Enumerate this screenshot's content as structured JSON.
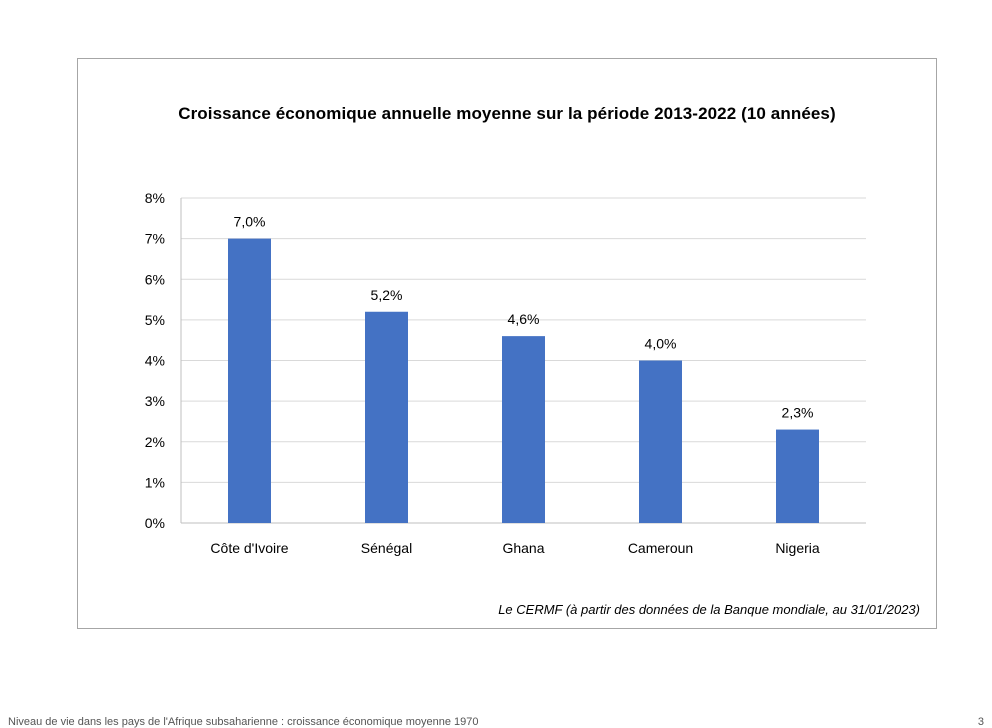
{
  "chart_data": {
    "type": "bar",
    "title": "Croissance économique annuelle moyenne sur la période 2013-2022  (10 années)",
    "source": "Le CERMF (à partir des données de la Banque mondiale, au 31/01/2023)",
    "categories": [
      "Côte d'Ivoire",
      "Sénégal",
      "Ghana",
      "Cameroun",
      "Nigeria"
    ],
    "values": [
      7.0,
      5.2,
      4.6,
      4.0,
      2.3
    ],
    "data_labels": [
      "7,0%",
      "5,2%",
      "4,6%",
      "4,0%",
      "2,3%"
    ],
    "ylim": [
      0,
      8
    ],
    "yticks": [
      0,
      1,
      2,
      3,
      4,
      5,
      6,
      7,
      8
    ],
    "ytick_labels": [
      "0%",
      "1%",
      "2%",
      "3%",
      "4%",
      "5%",
      "6%",
      "7%",
      "8%"
    ],
    "xlabel": "",
    "ylabel": "",
    "grid": true,
    "bar_color": "#4472c4",
    "grid_color": "#d9d9d9"
  },
  "footer": {
    "text": "Niveau de vie dans les pays de l'Afrique subsaharienne : croissance économique moyenne 1970",
    "page": "3"
  }
}
